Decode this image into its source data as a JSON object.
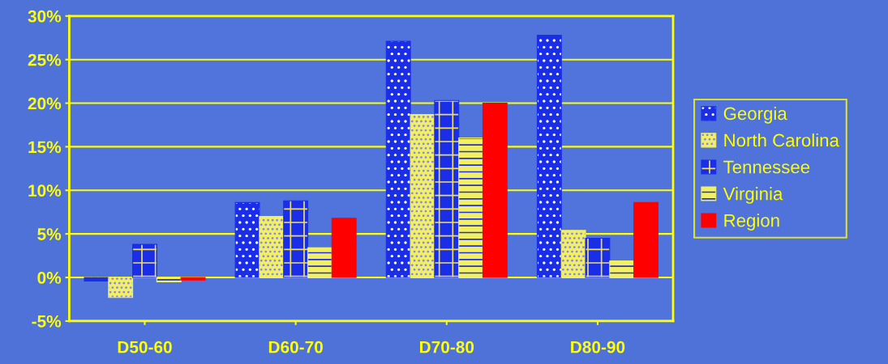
{
  "chart_data": {
    "type": "bar",
    "categories": [
      "D50-60",
      "D60-70",
      "D70-80",
      "D80-90"
    ],
    "series": [
      {
        "name": "Georgia",
        "color": "#1a2ee8",
        "values": [
          -0.4,
          8.6,
          27.1,
          27.8
        ]
      },
      {
        "name": "North Carolina",
        "color": "#f2f060",
        "values": [
          -2.3,
          7.0,
          18.7,
          5.4
        ]
      },
      {
        "name": "Tennessee",
        "color": "#1a2ee8",
        "values": [
          3.8,
          8.8,
          20.3,
          4.5
        ]
      },
      {
        "name": "Virginia",
        "color": "#f2f060",
        "values": [
          -0.5,
          3.4,
          16.0,
          1.9
        ]
      },
      {
        "name": "Region",
        "color": "#ff0000",
        "values": [
          -0.3,
          6.8,
          20.0,
          8.6
        ]
      }
    ],
    "ylim": [
      -5,
      30
    ],
    "yticks": [
      {
        "value": -5,
        "label": "-5%"
      },
      {
        "value": 0,
        "label": "0%"
      },
      {
        "value": 5,
        "label": "5%"
      },
      {
        "value": 10,
        "label": "10%"
      },
      {
        "value": 15,
        "label": "15%"
      },
      {
        "value": 20,
        "label": "20%"
      },
      {
        "value": 25,
        "label": "25%"
      },
      {
        "value": 30,
        "label": "30%"
      }
    ],
    "grid": "y",
    "legend": "right"
  }
}
